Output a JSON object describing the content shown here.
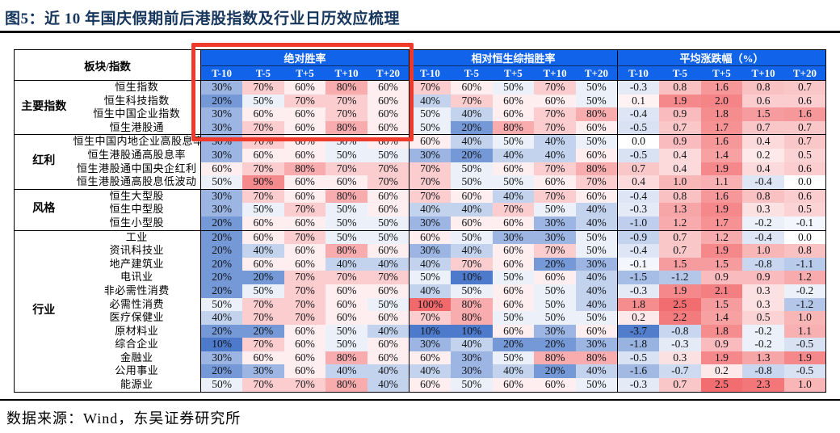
{
  "title": "图5：近 10 年国庆假期前后港股指数及行业日历效应梳理",
  "source": "数据来源：Wind，东吴证券研究所",
  "colors": {
    "header_blue": "#1163e9",
    "highlight_red": "#ee392b",
    "title_navy": "#17365d",
    "heat_red": "#f2696c",
    "heat_blue": "#4d7aca"
  },
  "chart_data": {
    "type": "heatmap-table",
    "corner_header": "板块/指数",
    "col_groups": [
      {
        "label": "绝对胜率",
        "key": "abs",
        "format": "pct"
      },
      {
        "label": "相对恒生综指胜率",
        "key": "rel",
        "format": "pct"
      },
      {
        "label": "平均涨跌幅（%）",
        "key": "chg",
        "format": "num"
      }
    ],
    "sub_cols": [
      "T-10",
      "T-5",
      "T+5",
      "T+10",
      "T+20"
    ],
    "groups": [
      {
        "label": "主要指数",
        "rows": [
          {
            "name": "恒生指数",
            "abs": [
              30,
              70,
              60,
              80,
              60
            ],
            "rel": [
              70,
              60,
              50,
              70,
              50
            ],
            "chg": [
              -0.3,
              0.8,
              1.6,
              0.8,
              0.7
            ]
          },
          {
            "name": "恒生科技指数",
            "abs": [
              20,
              50,
              70,
              70,
              60
            ],
            "rel": [
              40,
              70,
              60,
              60,
              50
            ],
            "chg": [
              0.1,
              1.9,
              2.0,
              0.6,
              0.6
            ]
          },
          {
            "name": "恒生中国企业指数",
            "abs": [
              30,
              60,
              60,
              70,
              60
            ],
            "rel": [
              50,
              40,
              60,
              70,
              80
            ],
            "chg": [
              -0.4,
              0.9,
              1.8,
              1.5,
              1.6
            ]
          },
          {
            "name": "恒生港股通",
            "abs": [
              30,
              70,
              60,
              80,
              60
            ],
            "rel": [
              50,
              20,
              80,
              70,
              60
            ],
            "chg": [
              -0.5,
              0.7,
              1.7,
              0.7,
              0.7
            ]
          }
        ]
      },
      {
        "label": "红利",
        "rows": [
          {
            "name": "恒生中国内地企业高股息率",
            "abs": [
              30,
              70,
              60,
              50,
              60
            ],
            "rel": [
              60,
              40,
              50,
              40,
              50
            ],
            "chg": [
              0.0,
              0.9,
              1.6,
              0.4,
              0.7
            ]
          },
          {
            "name": "恒生港股通高股息率",
            "abs": [
              30,
              60,
              60,
              50,
              50
            ],
            "rel": [
              30,
              20,
              40,
              40,
              60
            ],
            "chg": [
              -0.5,
              0.4,
              1.4,
              0.2,
              0.5
            ]
          },
          {
            "name": "恒生港股通中国央企红利",
            "abs": [
              60,
              70,
              80,
              70,
              70
            ],
            "rel": [
              70,
              50,
              60,
              70,
              80
            ],
            "chg": [
              0.7,
              0.4,
              1.9,
              0.4,
              0.6
            ]
          },
          {
            "name": "恒生港股通高股息低波动",
            "abs": [
              50,
              90,
              60,
              60,
              70
            ],
            "rel": [
              70,
              50,
              50,
              60,
              70
            ],
            "chg": [
              0.4,
              1.0,
              1.1,
              -0.4,
              0.0
            ]
          }
        ]
      },
      {
        "label": "风格",
        "rows": [
          {
            "name": "恒生大型股",
            "abs": [
              30,
              70,
              60,
              80,
              60
            ],
            "rel": [
              70,
              60,
              40,
              70,
              60
            ],
            "chg": [
              -0.4,
              0.8,
              1.6,
              0.8,
              0.6
            ]
          },
          {
            "name": "恒生中型股",
            "abs": [
              30,
              50,
              70,
              50,
              60
            ],
            "rel": [
              40,
              40,
              70,
              50,
              40
            ],
            "chg": [
              -0.3,
              1.3,
              1.9,
              0.3,
              0.5
            ]
          },
          {
            "name": "恒生小型股",
            "abs": [
              20,
              60,
              60,
              50,
              50
            ],
            "rel": [
              30,
              60,
              60,
              30,
              40
            ],
            "chg": [
              -1.0,
              1.2,
              1.7,
              -0.2,
              -0.1
            ]
          }
        ]
      },
      {
        "label": "行业",
        "rows": [
          {
            "name": "工业",
            "abs": [
              20,
              60,
              70,
              50,
              50
            ],
            "rel": [
              60,
              50,
              30,
              30,
              50
            ],
            "chg": [
              -0.9,
              0.7,
              1.2,
              -0.4,
              0.0
            ]
          },
          {
            "name": "资讯科技业",
            "abs": [
              20,
              40,
              60,
              80,
              60
            ],
            "rel": [
              30,
              40,
              60,
              70,
              50
            ],
            "chg": [
              -0.4,
              0.7,
              1.9,
              1.0,
              0.8
            ]
          },
          {
            "name": "地产建筑业",
            "abs": [
              20,
              60,
              60,
              40,
              40
            ],
            "rel": [
              40,
              70,
              60,
              20,
              30
            ],
            "chg": [
              -0.1,
              1.5,
              1.5,
              -0.8,
              -1.1
            ]
          },
          {
            "name": "电讯业",
            "abs": [
              20,
              20,
              70,
              70,
              70
            ],
            "rel": [
              50,
              10,
              50,
              60,
              40
            ],
            "chg": [
              -1.5,
              -1.2,
              0.9,
              0.9,
              1.2
            ]
          },
          {
            "name": "非必需性消费",
            "abs": [
              20,
              50,
              70,
              60,
              60
            ],
            "rel": [
              40,
              50,
              60,
              50,
              40
            ],
            "chg": [
              -0.3,
              1.9,
              2.1,
              0.3,
              -0.2
            ]
          },
          {
            "name": "必需性消费",
            "abs": [
              50,
              70,
              70,
              60,
              50
            ],
            "rel": [
              100,
              80,
              60,
              50,
              40
            ],
            "chg": [
              1.8,
              2.5,
              1.5,
              0.3,
              -1.2
            ]
          },
          {
            "name": "医疗保健业",
            "abs": [
              40,
              70,
              70,
              60,
              60
            ],
            "rel": [
              70,
              80,
              50,
              50,
              50
            ],
            "chg": [
              0.2,
              2.2,
              1.4,
              0.5,
              1.0
            ]
          },
          {
            "name": "原材料业",
            "abs": [
              20,
              20,
              60,
              50,
              40
            ],
            "rel": [
              10,
              10,
              60,
              30,
              60
            ],
            "chg": [
              -3.7,
              -0.8,
              1.8,
              -0.2,
              1.1
            ]
          },
          {
            "name": "综合企业",
            "abs": [
              10,
              70,
              60,
              50,
              60
            ],
            "rel": [
              30,
              40,
              20,
              20,
              30
            ],
            "chg": [
              -1.8,
              -0.3,
              0.9,
              -0.2,
              -0.5
            ]
          },
          {
            "name": "金融业",
            "abs": [
              30,
              60,
              60,
              80,
              60
            ],
            "rel": [
              60,
              30,
              50,
              80,
              80
            ],
            "chg": [
              -0.5,
              0.3,
              1.9,
              1.3,
              1.9
            ]
          },
          {
            "name": "公用事业",
            "abs": [
              20,
              30,
              60,
              40,
              40
            ],
            "rel": [
              40,
              30,
              40,
              20,
              40
            ],
            "chg": [
              -1.6,
              -0.7,
              0.2,
              -0.8,
              -0.5
            ]
          },
          {
            "name": "能源业",
            "abs": [
              50,
              70,
              70,
              80,
              40
            ],
            "rel": [
              60,
              50,
              60,
              60,
              50
            ],
            "chg": [
              -0.3,
              0.7,
              2.5,
              2.3,
              1.0
            ]
          }
        ]
      }
    ]
  }
}
